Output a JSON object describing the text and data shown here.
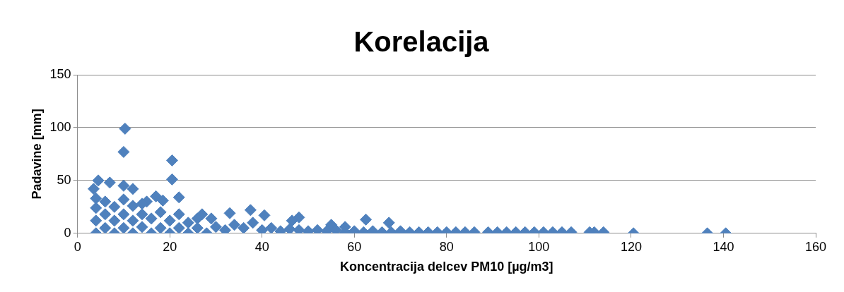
{
  "chart_data": {
    "type": "scatter",
    "title": "Korelacija",
    "xlabel": "Koncentracija delcev PM10 [µg/m3]",
    "ylabel": "Padavine [mm]",
    "xlim": [
      0,
      160
    ],
    "xticks": [
      0,
      20,
      40,
      60,
      80,
      100,
      120,
      140,
      160
    ],
    "ylim": [
      0,
      150
    ],
    "yticks": [
      0,
      50,
      100,
      150
    ],
    "grid": "y",
    "legend": false,
    "marker": "diamond",
    "series": [
      {
        "color": "#4f81bd",
        "x": [
          10.3,
          10,
          20.5,
          20.5,
          22,
          4.5,
          3.5,
          7,
          10,
          12,
          17,
          18.5,
          15,
          33,
          37.5,
          40.5,
          48,
          46.5,
          62.5,
          67.5,
          55,
          58,
          27,
          29,
          4,
          4,
          4,
          4,
          6,
          6,
          6,
          8,
          8,
          8,
          10,
          10,
          10,
          12,
          12,
          12,
          14,
          14,
          14,
          16,
          16,
          18,
          18,
          20,
          20,
          22,
          22,
          24,
          24,
          26,
          26,
          28,
          30,
          32,
          34,
          36,
          38,
          40,
          42,
          44,
          46,
          48,
          50,
          52,
          54,
          56,
          58,
          60,
          62,
          64,
          66,
          68,
          70,
          72,
          74,
          76,
          78,
          80,
          82,
          84,
          86,
          89,
          91,
          93,
          95,
          97,
          99,
          101,
          103,
          105,
          107,
          111,
          112,
          114,
          120.5,
          136.5,
          140.5
        ],
        "values": [
          99,
          77,
          69,
          51,
          34,
          50,
          42,
          48,
          45,
          42,
          35,
          31,
          30,
          19,
          22,
          17,
          15,
          12,
          13,
          10,
          8,
          6,
          18,
          14,
          0,
          12,
          24,
          33,
          5,
          18,
          30,
          0,
          12,
          25,
          5,
          18,
          32,
          0,
          12,
          26,
          6,
          18,
          28,
          0,
          14,
          5,
          20,
          0,
          12,
          5,
          18,
          0,
          10,
          5,
          14,
          0,
          6,
          3,
          8,
          5,
          10,
          3,
          5,
          2,
          4,
          3,
          2,
          3,
          2,
          3,
          1,
          2,
          1,
          2,
          1,
          1,
          2,
          1,
          1,
          1,
          1,
          1,
          1,
          1,
          1,
          1,
          1,
          1,
          1,
          1,
          1,
          1,
          1,
          1,
          1,
          1,
          1,
          1,
          0,
          0,
          0
        ]
      }
    ]
  }
}
